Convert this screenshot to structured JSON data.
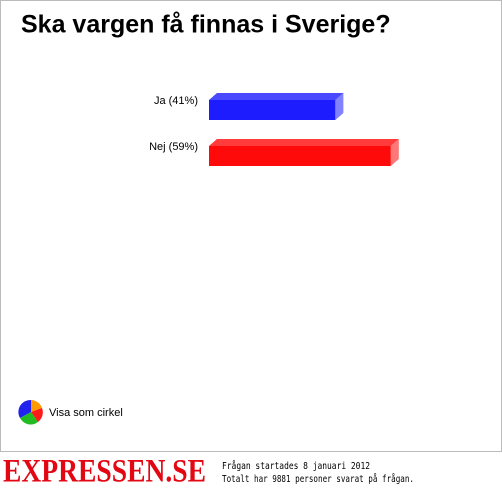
{
  "chart_data": {
    "type": "bar3d",
    "title": "Ska vargen få finnas i Sverige?",
    "values": [
      41,
      59
    ],
    "value_labels": [
      "Ja (41%)",
      "Nej (59%)"
    ],
    "colors": [
      "#1c1cff",
      "#ff0a0a"
    ]
  },
  "toggle": "Visa som cirkel",
  "logo": "EXPRESSEN.SE",
  "footer": {
    "started": "Frågan startades 8 januari 2012",
    "total": "Totalt har 9881 personer svarat på frågan."
  }
}
